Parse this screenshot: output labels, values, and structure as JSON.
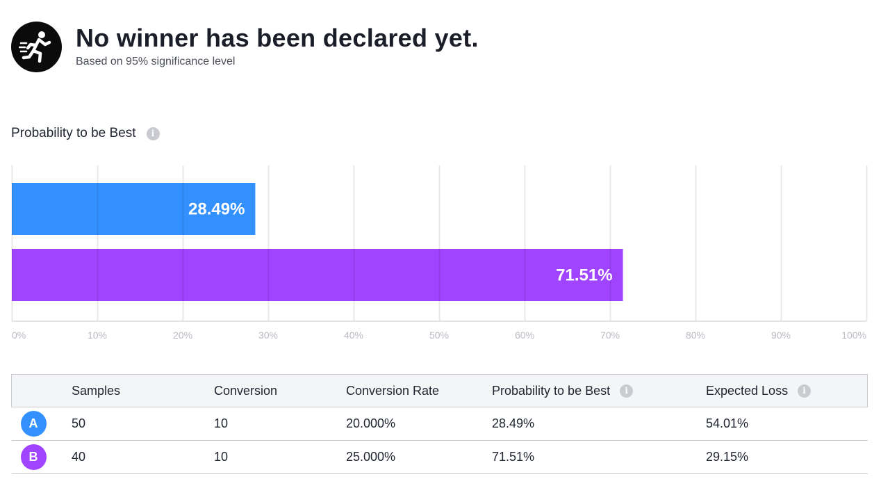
{
  "header": {
    "title": "No winner has been declared yet.",
    "subtitle": "Based on 95% significance level",
    "icon": "running-person-icon"
  },
  "chart_title": "Probability to be Best",
  "chart_data": {
    "type": "bar",
    "orientation": "horizontal",
    "categories": [
      "A",
      "B"
    ],
    "values": [
      28.49,
      71.51
    ],
    "value_labels": [
      "28.49%",
      "71.51%"
    ],
    "colors": [
      "#3391ff",
      "#a044ff"
    ],
    "xlim": [
      0,
      100
    ],
    "xticks": [
      0,
      10,
      20,
      30,
      40,
      50,
      60,
      70,
      80,
      90,
      100
    ],
    "xtick_labels": [
      "0%",
      "10%",
      "20%",
      "30%",
      "40%",
      "50%",
      "60%",
      "70%",
      "80%",
      "90%",
      "100%"
    ],
    "grid": true,
    "title": "Probability to be Best",
    "xlabel": "",
    "ylabel": ""
  },
  "table": {
    "headers": {
      "samples": "Samples",
      "conversion": "Conversion",
      "rate": "Conversion Rate",
      "probability": "Probability to be Best",
      "loss": "Expected Loss"
    },
    "rows": [
      {
        "variant": "A",
        "color": "#3391ff",
        "samples": "50",
        "conversion": "10",
        "rate": "20.000%",
        "probability": "28.49%",
        "loss": "54.01%"
      },
      {
        "variant": "B",
        "color": "#a044ff",
        "samples": "40",
        "conversion": "10",
        "rate": "25.000%",
        "probability": "71.51%",
        "loss": "29.15%"
      }
    ]
  }
}
